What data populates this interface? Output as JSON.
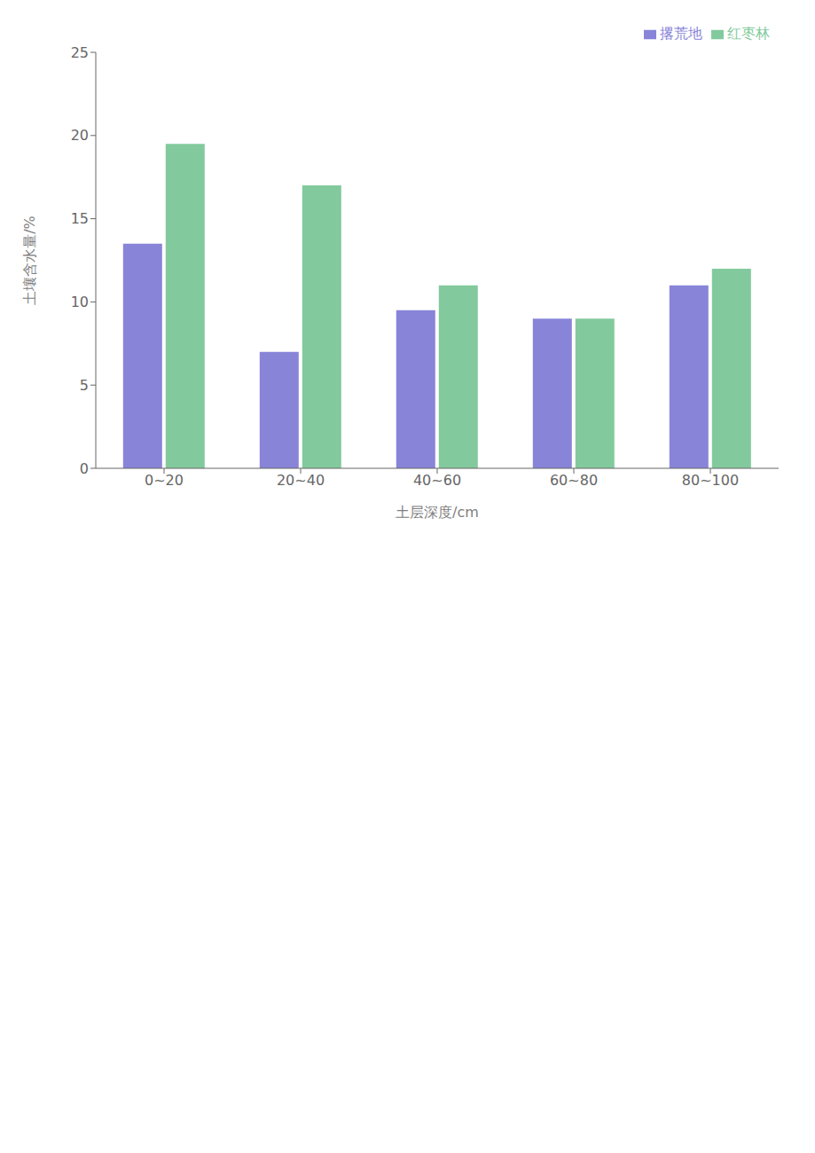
{
  "chart_data": {
    "type": "bar",
    "categories": [
      "0~20",
      "20~40",
      "40~60",
      "60~80",
      "80~100"
    ],
    "series": [
      {
        "name": "撂荒地",
        "color": "#8884d8",
        "values": [
          13.5,
          7.0,
          9.5,
          9.0,
          11.0
        ]
      },
      {
        "name": "红枣林",
        "color": "#82ca9d",
        "values": [
          19.5,
          17.0,
          11.0,
          9.0,
          12.0
        ]
      }
    ],
    "x_label": "土层深度/cm",
    "y_label": "土壤含水量/%",
    "ylim": [
      0,
      25
    ],
    "yticks": [
      0,
      5,
      10,
      15,
      20,
      25
    ],
    "grid": false,
    "legend": "upper right"
  }
}
